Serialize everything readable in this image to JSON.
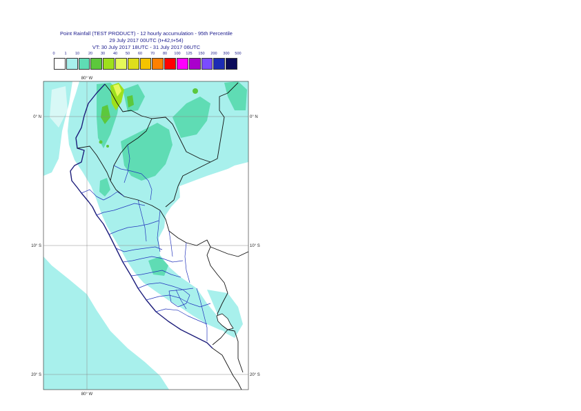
{
  "title": {
    "line1": "Point Rainfall (TEST PRODUCT) - 12 hourly accumulation - 95th Percentile",
    "line2": "29 July 2017 00UTC (t+42,t+54)",
    "line3": "VT: 30 July 2017 18UTC - 31 July 2017 06UTC"
  },
  "legend": {
    "labels": [
      "0",
      "1",
      "10",
      "20",
      "30",
      "40",
      "50",
      "60",
      "70",
      "80",
      "100",
      "125",
      "150",
      "200",
      "300",
      "500"
    ],
    "colors": [
      "#ffffff",
      "#a8f0ec",
      "#5fdcb4",
      "#5cc83c",
      "#9ee01c",
      "#e6f85a",
      "#dede1c",
      "#f5c400",
      "#ff8000",
      "#ff0000",
      "#ff00ff",
      "#aa00cc",
      "#7a4cff",
      "#1c2cb4",
      "#0c0c5a"
    ]
  },
  "map": {
    "lon_labels": [
      "80° W",
      "80° W"
    ],
    "lat_labels": [
      "0° N",
      "10° S",
      "20° S"
    ]
  }
}
